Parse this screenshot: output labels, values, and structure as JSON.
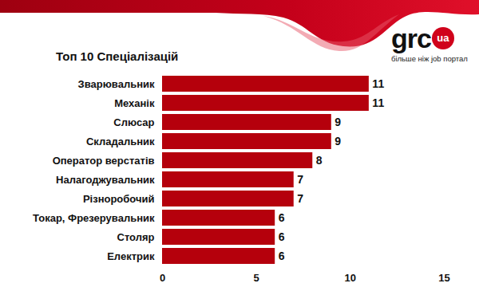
{
  "chart_data": {
    "type": "bar",
    "title": "Топ 10 Спеціалізацій",
    "categories": [
      "Зварювальник",
      "Механік",
      "Слюсар",
      "Складальник",
      "Оператор верстатів",
      "Налагоджувальник",
      "Різноробочий",
      "Токар, Фрезерувальник",
      "Столяр",
      "Електрик"
    ],
    "values": [
      11,
      11,
      9,
      9,
      8,
      7,
      7,
      6,
      6,
      6
    ],
    "color": "#b5000c",
    "orientation": "horizontal",
    "xlim": [
      0,
      15
    ],
    "xticks": [
      0,
      5,
      10,
      15
    ],
    "grid": false,
    "data_labels": true,
    "annotations": [
      "grc",
      "ua",
      "більше ніж job портал"
    ]
  }
}
